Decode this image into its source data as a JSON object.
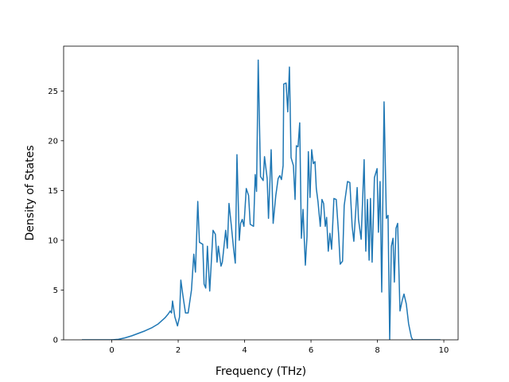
{
  "chart_data": {
    "type": "line",
    "xlabel": "Frequency (THz)",
    "ylabel": "Density of States",
    "xlim": [
      -1.45,
      10.43
    ],
    "ylim": [
      0,
      29.5
    ],
    "xticks": [
      0,
      2,
      4,
      6,
      8,
      10
    ],
    "yticks": [
      0,
      5,
      10,
      15,
      20,
      25
    ],
    "series": [
      {
        "color": "#1f77b4",
        "x": [
          -0.9,
          0.0,
          0.2,
          0.4,
          0.6,
          0.8,
          1.0,
          1.2,
          1.4,
          1.6,
          1.7,
          1.76,
          1.8,
          1.83,
          1.9,
          1.98,
          2.04,
          2.08,
          2.14,
          2.22,
          2.3,
          2.4,
          2.47,
          2.52,
          2.59,
          2.64,
          2.74,
          2.78,
          2.83,
          2.88,
          2.95,
          3.05,
          3.12,
          3.17,
          3.21,
          3.29,
          3.33,
          3.43,
          3.48,
          3.53,
          3.6,
          3.67,
          3.72,
          3.77,
          3.84,
          3.88,
          3.93,
          3.98,
          4.05,
          4.12,
          4.17,
          4.27,
          4.32,
          4.36,
          4.41,
          4.48,
          4.56,
          4.6,
          4.68,
          4.72,
          4.8,
          4.86,
          4.94,
          5.01,
          5.06,
          5.11,
          5.16,
          5.18,
          5.25,
          5.3,
          5.35,
          5.4,
          5.47,
          5.52,
          5.56,
          5.61,
          5.66,
          5.71,
          5.76,
          5.83,
          5.88,
          5.92,
          5.97,
          6.02,
          6.07,
          6.12,
          6.16,
          6.21,
          6.28,
          6.33,
          6.38,
          6.43,
          6.47,
          6.52,
          6.57,
          6.62,
          6.69,
          6.76,
          6.83,
          6.88,
          6.95,
          7.0,
          7.1,
          7.17,
          7.24,
          7.29,
          7.39,
          7.43,
          7.51,
          7.6,
          7.65,
          7.7,
          7.75,
          7.79,
          7.84,
          7.91,
          7.99,
          8.03,
          8.08,
          8.13,
          8.2,
          8.27,
          8.32,
          8.37,
          8.42,
          8.47,
          8.51,
          8.56,
          8.61,
          8.68,
          8.75,
          8.8,
          8.87,
          8.94,
          9.02,
          9.06,
          9.9
        ],
        "values": [
          0,
          0,
          0.05,
          0.2,
          0.4,
          0.65,
          0.9,
          1.2,
          1.6,
          2.2,
          2.6,
          2.9,
          2.7,
          3.9,
          2.3,
          1.4,
          2.3,
          6.0,
          4.5,
          2.7,
          2.7,
          5.0,
          8.6,
          6.8,
          13.9,
          9.8,
          9.6,
          5.6,
          5.2,
          9.4,
          4.9,
          11.0,
          10.6,
          7.8,
          9.4,
          7.4,
          7.8,
          11.0,
          9.2,
          13.7,
          11.5,
          9.1,
          7.7,
          18.6,
          10.0,
          11.7,
          12.1,
          11.4,
          15.2,
          14.5,
          11.6,
          11.4,
          16.6,
          14.9,
          28.1,
          16.4,
          16.0,
          18.4,
          16.2,
          12.2,
          19.1,
          11.7,
          14.5,
          16.2,
          16.5,
          16.1,
          17.5,
          25.7,
          25.8,
          22.9,
          27.4,
          18.3,
          17.5,
          14.1,
          19.5,
          19.4,
          21.8,
          10.2,
          13.1,
          7.5,
          10.4,
          18.9,
          14.3,
          19.1,
          17.7,
          17.9,
          15.2,
          13.9,
          11.4,
          14.1,
          13.7,
          11.4,
          12.3,
          8.9,
          10.7,
          9.1,
          14.2,
          14.1,
          10.7,
          7.6,
          7.9,
          13.5,
          15.9,
          15.8,
          11.4,
          9.9,
          15.3,
          12.1,
          10.1,
          18.1,
          8.9,
          14.1,
          8.0,
          14.2,
          7.8,
          16.3,
          17.2,
          10.8,
          15.9,
          4.8,
          23.9,
          12.2,
          12.5,
          0.0,
          9.4,
          10.2,
          5.8,
          11.2,
          11.7,
          2.9,
          4.0,
          4.6,
          3.6,
          1.6,
          0.3,
          0,
          0
        ]
      }
    ]
  }
}
